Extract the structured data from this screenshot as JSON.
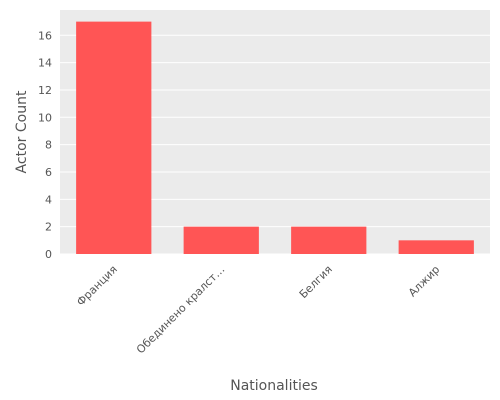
{
  "chart_data": {
    "type": "bar",
    "categories": [
      "Франция",
      "Обединено кралст…",
      "Белгия",
      "Алжир"
    ],
    "values": [
      17,
      2,
      2,
      1
    ],
    "xlabel": "Nationalities",
    "ylabel": "Actor Count",
    "ylim": [
      0,
      17.85
    ],
    "yticks": [
      0,
      2,
      4,
      6,
      8,
      10,
      12,
      14,
      16
    ],
    "grid": true,
    "legend": "none",
    "x_tick_rotation_deg": -45
  },
  "colors": {
    "bar": "#ff5555",
    "plot_background": "#ebebeb",
    "grid": "#ffffff",
    "text": "#555555"
  }
}
